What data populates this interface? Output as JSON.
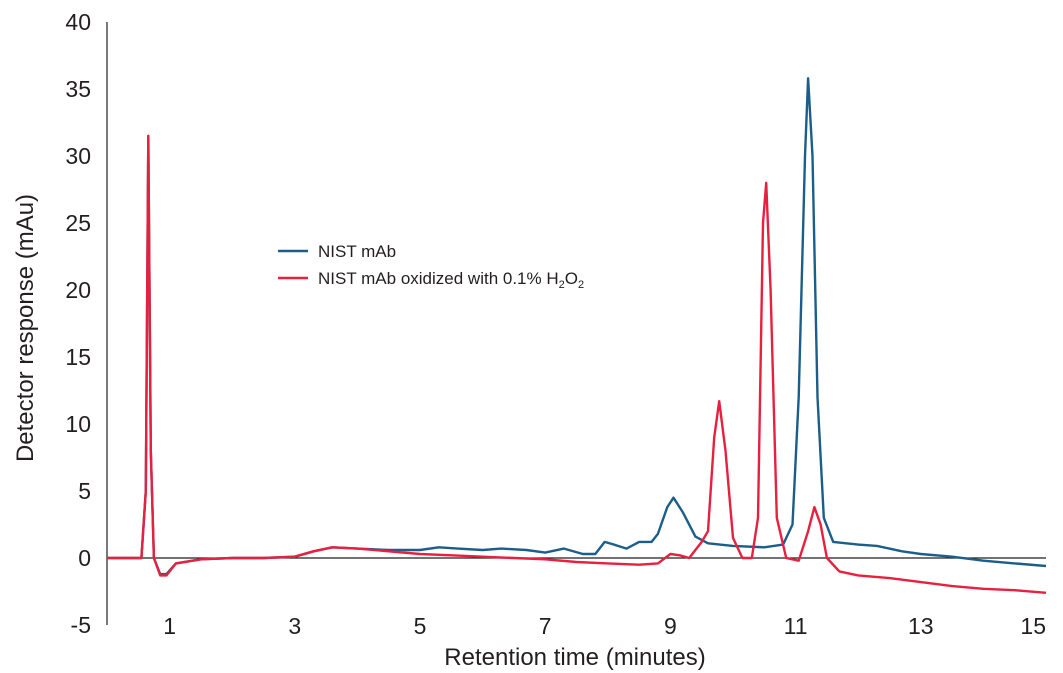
{
  "chart_data": {
    "type": "line",
    "title": "",
    "xlabel": "Retention time (minutes)",
    "ylabel": "Detector response (mAu)",
    "xlim": [
      0.0,
      15
    ],
    "ylim": [
      -5,
      40
    ],
    "xticks": [
      1,
      3,
      5,
      7,
      9,
      11,
      13,
      15
    ],
    "yticks": [
      -5,
      0,
      5,
      10,
      15,
      20,
      25,
      30,
      35,
      40
    ],
    "grid": false,
    "legend_position": "center-left",
    "legend": {
      "series1": "NIST mAb",
      "series2_prefix": "NIST mAb oxidized with 0.1% H",
      "sub1": "2",
      "series2_mid": "O",
      "sub2": "2"
    },
    "series": [
      {
        "name": "NIST mAb",
        "color": "#1b5e8a",
        "points": [
          [
            0,
            0
          ],
          [
            0.55,
            0
          ],
          [
            0.62,
            5
          ],
          [
            0.66,
            31.5
          ],
          [
            0.7,
            8
          ],
          [
            0.75,
            0
          ],
          [
            0.85,
            -1.2
          ],
          [
            0.95,
            -1.2
          ],
          [
            1.1,
            -0.4
          ],
          [
            1.5,
            -0.1
          ],
          [
            2,
            0
          ],
          [
            2.5,
            0
          ],
          [
            3,
            0.1
          ],
          [
            3.3,
            0.5
          ],
          [
            3.6,
            0.8
          ],
          [
            4,
            0.7
          ],
          [
            4.5,
            0.6
          ],
          [
            5,
            0.6
          ],
          [
            5.3,
            0.8
          ],
          [
            5.6,
            0.7
          ],
          [
            6,
            0.6
          ],
          [
            6.3,
            0.7
          ],
          [
            6.7,
            0.6
          ],
          [
            7,
            0.4
          ],
          [
            7.3,
            0.7
          ],
          [
            7.6,
            0.3
          ],
          [
            7.8,
            0.3
          ],
          [
            7.95,
            1.2
          ],
          [
            8.1,
            1
          ],
          [
            8.3,
            0.7
          ],
          [
            8.5,
            1.2
          ],
          [
            8.7,
            1.2
          ],
          [
            8.8,
            1.8
          ],
          [
            8.95,
            3.8
          ],
          [
            9.05,
            4.5
          ],
          [
            9.2,
            3.4
          ],
          [
            9.4,
            1.6
          ],
          [
            9.6,
            1.1
          ],
          [
            10,
            0.9
          ],
          [
            10.5,
            0.8
          ],
          [
            10.8,
            1
          ],
          [
            10.95,
            2.5
          ],
          [
            11.05,
            12
          ],
          [
            11.15,
            30
          ],
          [
            11.2,
            35.8
          ],
          [
            11.27,
            30
          ],
          [
            11.35,
            12
          ],
          [
            11.45,
            3
          ],
          [
            11.6,
            1.2
          ],
          [
            12,
            1
          ],
          [
            12.3,
            0.9
          ],
          [
            12.7,
            0.5
          ],
          [
            13,
            0.3
          ],
          [
            13.5,
            0.1
          ],
          [
            14,
            -0.2
          ],
          [
            14.5,
            -0.4
          ],
          [
            15,
            -0.6
          ]
        ]
      },
      {
        "name": "NIST mAb oxidized with 0.1% H2O2",
        "color": "#e8203f",
        "points": [
          [
            0,
            0
          ],
          [
            0.55,
            0
          ],
          [
            0.62,
            5
          ],
          [
            0.66,
            31.5
          ],
          [
            0.7,
            8
          ],
          [
            0.75,
            0
          ],
          [
            0.85,
            -1.3
          ],
          [
            0.95,
            -1.3
          ],
          [
            1.1,
            -0.4
          ],
          [
            1.5,
            -0.1
          ],
          [
            2,
            0
          ],
          [
            2.5,
            0
          ],
          [
            3,
            0.1
          ],
          [
            3.3,
            0.5
          ],
          [
            3.6,
            0.8
          ],
          [
            4,
            0.7
          ],
          [
            4.5,
            0.5
          ],
          [
            5,
            0.3
          ],
          [
            5.5,
            0.2
          ],
          [
            6,
            0.1
          ],
          [
            6.5,
            0
          ],
          [
            7,
            -0.1
          ],
          [
            7.5,
            -0.3
          ],
          [
            8,
            -0.4
          ],
          [
            8.5,
            -0.5
          ],
          [
            8.8,
            -0.4
          ],
          [
            9,
            0.3
          ],
          [
            9.15,
            0.2
          ],
          [
            9.3,
            0
          ],
          [
            9.5,
            1.2
          ],
          [
            9.6,
            2
          ],
          [
            9.7,
            9
          ],
          [
            9.78,
            11.7
          ],
          [
            9.88,
            8
          ],
          [
            10,
            1.5
          ],
          [
            10.15,
            0
          ],
          [
            10.3,
            0
          ],
          [
            10.4,
            3
          ],
          [
            10.48,
            25
          ],
          [
            10.53,
            28
          ],
          [
            10.6,
            20
          ],
          [
            10.7,
            3
          ],
          [
            10.85,
            0
          ],
          [
            11.05,
            -0.2
          ],
          [
            11.2,
            2
          ],
          [
            11.3,
            3.8
          ],
          [
            11.4,
            2.5
          ],
          [
            11.5,
            0
          ],
          [
            11.7,
            -1
          ],
          [
            12,
            -1.3
          ],
          [
            12.5,
            -1.5
          ],
          [
            13,
            -1.8
          ],
          [
            13.5,
            -2.1
          ],
          [
            14,
            -2.3
          ],
          [
            14.5,
            -2.4
          ],
          [
            15,
            -2.6
          ]
        ]
      }
    ]
  }
}
